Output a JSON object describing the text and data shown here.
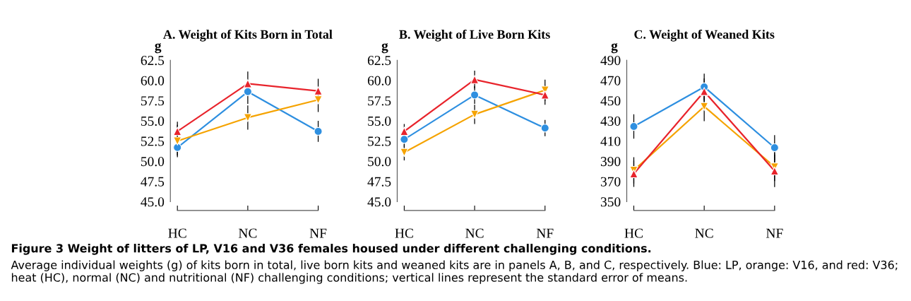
{
  "chart_data": [
    {
      "type": "line",
      "title": "A. Weight of Kits Born in Total",
      "ylabel": "g",
      "categories": [
        "HC",
        "NC",
        "NF"
      ],
      "ylim": [
        45,
        62.5
      ],
      "yticks": [
        {
          "value": 45,
          "label": "45.0"
        },
        {
          "value": 47.5,
          "label": "47.5"
        },
        {
          "value": 50,
          "label": "50.0"
        },
        {
          "value": 52.5,
          "label": "52.5"
        },
        {
          "value": 55,
          "label": "55.0"
        },
        {
          "value": 57.5,
          "label": "57.5"
        },
        {
          "value": 60,
          "label": "60.0"
        },
        {
          "value": 62.5,
          "label": "62.5"
        }
      ],
      "grid": false,
      "legend": false,
      "series": [
        {
          "color": "#2e8fe0",
          "marker": "circle",
          "values": [
            51.7,
            58.6,
            53.7
          ],
          "errors": [
            1.0,
            1.5,
            1.3
          ]
        },
        {
          "color": "#f5a300",
          "marker": "triangle_down",
          "values": [
            52.5,
            55.4,
            57.6
          ],
          "errors": [
            2.0,
            1.5,
            1.5
          ]
        },
        {
          "color": "#e8242c",
          "marker": "triangle",
          "values": [
            53.7,
            59.6,
            58.7
          ],
          "errors": [
            1.2,
            1.5,
            1.5
          ]
        }
      ]
    },
    {
      "type": "line",
      "title": "B. Weight of Live Born Kits",
      "ylabel": "g",
      "categories": [
        "HC",
        "NC",
        "NF"
      ],
      "ylim": [
        45,
        62.5
      ],
      "yticks": [
        {
          "value": 45,
          "label": "45.0"
        },
        {
          "value": 47.5,
          "label": "47.5"
        },
        {
          "value": 50,
          "label": "50.0"
        },
        {
          "value": 52.5,
          "label": "52.5"
        },
        {
          "value": 55,
          "label": "55.0"
        },
        {
          "value": 57.5,
          "label": "57.5"
        },
        {
          "value": 60,
          "label": "60.0"
        },
        {
          "value": 62.5,
          "label": "62.5"
        }
      ],
      "grid": false,
      "legend": false,
      "series": [
        {
          "color": "#2e8fe0",
          "marker": "circle",
          "values": [
            52.7,
            58.2,
            54.1
          ],
          "errors": [
            1.0,
            1.1,
            1.0
          ]
        },
        {
          "color": "#f5a300",
          "marker": "triangle_down",
          "values": [
            51.1,
            55.8,
            58.8
          ],
          "errors": [
            1.0,
            1.2,
            1.3
          ]
        },
        {
          "color": "#e8242c",
          "marker": "triangle",
          "values": [
            53.7,
            60.1,
            58.2
          ],
          "errors": [
            0.9,
            1.1,
            1.2
          ]
        }
      ]
    },
    {
      "type": "line",
      "title": "C. Weight of Weaned Kits",
      "ylabel": "g",
      "categories": [
        "HC",
        "NC",
        "NF"
      ],
      "ylim": [
        350,
        490
      ],
      "yticks": [
        350,
        370,
        390,
        410,
        430,
        450,
        470,
        490
      ],
      "grid": false,
      "legend": false,
      "series": [
        {
          "color": "#2e8fe0",
          "marker": "circle",
          "values": [
            424.4,
            463.6,
            403.4
          ],
          "errors": [
            12,
            13,
            12.5
          ]
        },
        {
          "color": "#f5a300",
          "marker": "triangle_down",
          "values": [
            381,
            444.2,
            384.4
          ],
          "errors": [
            13,
            14.5,
            14
          ]
        },
        {
          "color": "#e8242c",
          "marker": "triangle",
          "values": [
            377.6,
            459,
            380.4
          ],
          "errors": [
            13,
            13,
            16
          ]
        }
      ],
      "annotations": [
        "Figure 3 Weight of litters of LP, V16 and V36 females housed under different challenging conditions.",
        "Average individual weights (g) of kits born in total, live born kits and weaned kits are in panels A, B, and C, respectively. Blue: LP, orange: V16, and red: V36; heat (HC), normal (NC) and nutritional (NF) challenging conditions; vertical lines represent the standard error of means."
      ]
    }
  ]
}
